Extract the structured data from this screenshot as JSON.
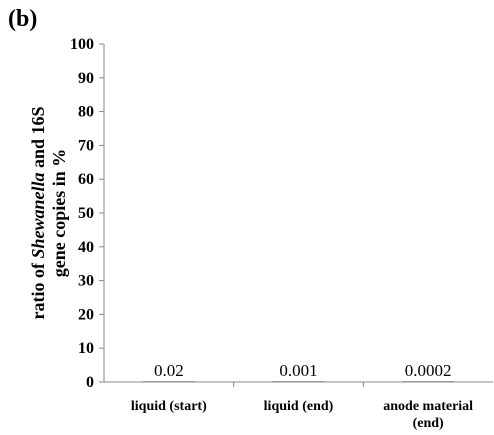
{
  "panel_label": "(b)",
  "chart_data": {
    "type": "bar",
    "title": "",
    "ylabel": {
      "line1_prefix": "ratio of ",
      "line1_italic": "Shewanella",
      "line1_suffix": " and 16S",
      "line2": "gene copies in %"
    },
    "xlabel": "",
    "ylim": [
      0,
      100
    ],
    "yticks": [
      0,
      10,
      20,
      30,
      40,
      50,
      60,
      70,
      80,
      90,
      100
    ],
    "grid": false,
    "categories": [
      [
        "liquid (start)"
      ],
      [
        "liquid (end)"
      ],
      [
        "anode material",
        "(end)"
      ]
    ],
    "values": [
      0.02,
      0.001,
      0.0002
    ],
    "data_labels": [
      "0.02",
      "0.001",
      "0.0002"
    ],
    "bar_color": "#555555",
    "axis_color": "#888888",
    "text_color": "#000000"
  }
}
